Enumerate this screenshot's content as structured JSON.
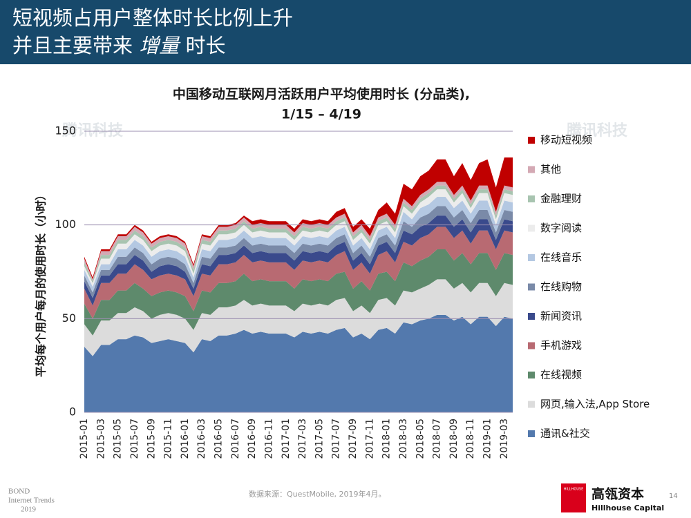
{
  "header": {
    "title_line1": "短视频占用户整体时长比例上升",
    "title_line2_a": "并且主要带来",
    "title_line2_b": "增量",
    "title_line2_c": "时长"
  },
  "chart_data": {
    "type": "stacked_area",
    "title": "中国移动互联网月活跃用户平均使用时长 (分品类),",
    "subtitle": "1/15 – 4/19",
    "y_label": "平均每个用户每月的使用时长（小时）",
    "ylim": [
      0,
      150
    ],
    "yticks": [
      0,
      50,
      100,
      150
    ],
    "grid": true,
    "legend": "right",
    "categories": [
      "2015-01",
      null,
      "2015-03",
      null,
      "2015-05",
      null,
      "2015-07",
      null,
      "2015-09",
      null,
      "2015-11",
      null,
      "2016-01",
      null,
      "2016-03",
      null,
      "2016-05",
      null,
      "2016-07",
      null,
      "2016-09",
      null,
      "2016-11",
      null,
      "2017-01",
      null,
      "2017-03",
      null,
      "2017-05",
      null,
      "2017-07",
      null,
      "2017-09",
      null,
      "2017-11",
      null,
      "2018-01",
      null,
      "2018-03",
      null,
      "2018-05",
      null,
      "2018-07",
      null,
      "2018-09",
      null,
      "2018-11",
      null,
      "2019-01",
      null,
      "2019-03",
      null
    ],
    "series": [
      {
        "name": "通讯&社交",
        "color": "#5379ad",
        "values": [
          35,
          30,
          36,
          36,
          39,
          39,
          41,
          40,
          37,
          38,
          39,
          38,
          37,
          32,
          39,
          38,
          41,
          41,
          42,
          44,
          42,
          43,
          42,
          42,
          42,
          40,
          43,
          42,
          43,
          42,
          44,
          45,
          40,
          42,
          39,
          44,
          45,
          42,
          48,
          47,
          49,
          50,
          52,
          52,
          49,
          51,
          47,
          51,
          51,
          46,
          51,
          50
        ]
      },
      {
        "name": "网页,输入法,App Store",
        "color": "#dcdcdc",
        "values": [
          12,
          11,
          13,
          13,
          14,
          14,
          15,
          14,
          13,
          14,
          14,
          14,
          13,
          12,
          14,
          14,
          15,
          15,
          15,
          16,
          15,
          15,
          15,
          15,
          15,
          14,
          15,
          15,
          15,
          15,
          16,
          16,
          14,
          15,
          14,
          16,
          16,
          15,
          17,
          17,
          17,
          18,
          19,
          19,
          17,
          18,
          17,
          18,
          18,
          16,
          18,
          18
        ]
      },
      {
        "name": "在线视频",
        "color": "#5e8a6c",
        "values": [
          11,
          9,
          11,
          11,
          12,
          12,
          13,
          12,
          12,
          12,
          12,
          12,
          12,
          10,
          12,
          12,
          13,
          13,
          13,
          14,
          13,
          13,
          13,
          13,
          13,
          12,
          13,
          13,
          13,
          13,
          14,
          14,
          12,
          13,
          12,
          14,
          14,
          13,
          15,
          14,
          15,
          15,
          16,
          16,
          15,
          16,
          15,
          16,
          16,
          14,
          16,
          16
        ]
      },
      {
        "name": "手机游戏",
        "color": "#b86a72",
        "values": [
          8,
          7,
          9,
          9,
          9,
          9,
          10,
          10,
          9,
          9,
          9,
          9,
          9,
          8,
          9,
          9,
          10,
          10,
          10,
          10,
          10,
          10,
          10,
          10,
          10,
          10,
          10,
          10,
          10,
          10,
          10,
          11,
          10,
          10,
          9,
          10,
          11,
          10,
          11,
          11,
          12,
          12,
          12,
          12,
          12,
          12,
          11,
          12,
          12,
          11,
          12,
          12
        ]
      },
      {
        "name": "新闻资讯",
        "color": "#3a4a8c",
        "values": [
          4,
          4,
          4,
          4,
          5,
          5,
          5,
          5,
          4,
          5,
          5,
          5,
          4,
          4,
          5,
          5,
          5,
          5,
          5,
          5,
          5,
          5,
          5,
          5,
          5,
          5,
          5,
          5,
          5,
          5,
          5,
          5,
          5,
          5,
          5,
          5,
          5,
          5,
          6,
          6,
          6,
          6,
          6,
          6,
          6,
          6,
          6,
          6,
          6,
          5,
          6,
          6
        ]
      },
      {
        "name": "在线购物",
        "color": "#7a8aa8",
        "values": [
          3,
          3,
          3,
          3,
          4,
          4,
          4,
          4,
          4,
          4,
          4,
          4,
          4,
          3,
          4,
          4,
          4,
          4,
          4,
          4,
          4,
          4,
          4,
          4,
          4,
          4,
          4,
          4,
          4,
          4,
          4,
          4,
          4,
          4,
          4,
          4,
          4,
          4,
          5,
          4,
          5,
          5,
          5,
          5,
          5,
          5,
          5,
          5,
          5,
          4,
          5,
          5
        ]
      },
      {
        "name": "在线音乐",
        "color": "#b4c8e2",
        "values": [
          3,
          3,
          3,
          3,
          4,
          4,
          4,
          4,
          4,
          4,
          4,
          4,
          4,
          3,
          4,
          4,
          4,
          4,
          4,
          4,
          4,
          4,
          4,
          4,
          4,
          4,
          4,
          4,
          4,
          4,
          4,
          4,
          4,
          4,
          4,
          4,
          4,
          4,
          5,
          4,
          5,
          5,
          5,
          5,
          5,
          5,
          5,
          5,
          5,
          4,
          5,
          5
        ]
      },
      {
        "name": "数字阅读",
        "color": "#ececec",
        "values": [
          2,
          2,
          3,
          3,
          3,
          3,
          3,
          3,
          3,
          3,
          3,
          3,
          3,
          2,
          3,
          3,
          3,
          3,
          3,
          3,
          3,
          3,
          3,
          3,
          3,
          3,
          3,
          3,
          3,
          3,
          3,
          3,
          3,
          3,
          3,
          3,
          3,
          3,
          3,
          3,
          3,
          4,
          4,
          4,
          3,
          4,
          3,
          4,
          4,
          3,
          4,
          4
        ]
      },
      {
        "name": "金融理财",
        "color": "#a8c4b0",
        "values": [
          2,
          1,
          2,
          2,
          2,
          2,
          2,
          2,
          2,
          2,
          2,
          2,
          2,
          2,
          2,
          2,
          2,
          2,
          2,
          2,
          2,
          2,
          2,
          2,
          2,
          2,
          2,
          2,
          2,
          2,
          2,
          2,
          2,
          2,
          2,
          2,
          2,
          2,
          2,
          2,
          2,
          2,
          2,
          2,
          2,
          2,
          2,
          2,
          2,
          2,
          2,
          2
        ]
      },
      {
        "name": "其他",
        "color": "#d4a9b4",
        "values": [
          2,
          1,
          2,
          2,
          2,
          2,
          2,
          2,
          2,
          2,
          2,
          2,
          2,
          2,
          2,
          2,
          2,
          2,
          2,
          2,
          2,
          2,
          2,
          2,
          2,
          2,
          2,
          2,
          2,
          2,
          2,
          2,
          2,
          2,
          2,
          2,
          2,
          2,
          2,
          2,
          2,
          2,
          2,
          2,
          2,
          2,
          2,
          2,
          2,
          2,
          2,
          2
        ]
      },
      {
        "name": "移动短视频",
        "color": "#c00000",
        "values": [
          1,
          1,
          1,
          1,
          1,
          1,
          1,
          1,
          1,
          1,
          1,
          1,
          1,
          1,
          1,
          1,
          1,
          1,
          1,
          1,
          2,
          2,
          2,
          2,
          2,
          2,
          2,
          2,
          2,
          2,
          3,
          3,
          3,
          3,
          4,
          4,
          6,
          6,
          8,
          9,
          10,
          10,
          12,
          12,
          10,
          12,
          11,
          12,
          14,
          13,
          15,
          16
        ]
      }
    ]
  },
  "footer": {
    "bond": "BOND",
    "trends": "Internet Trends",
    "year": "2019",
    "source": "数据来源：QuestMobile, 2019年4月。",
    "logo_small": "HILLHOUSE",
    "logo_cn": "高瓴资本",
    "logo_en": "Hillhouse Capital",
    "page": "14"
  },
  "watermark": "腾讯科技"
}
